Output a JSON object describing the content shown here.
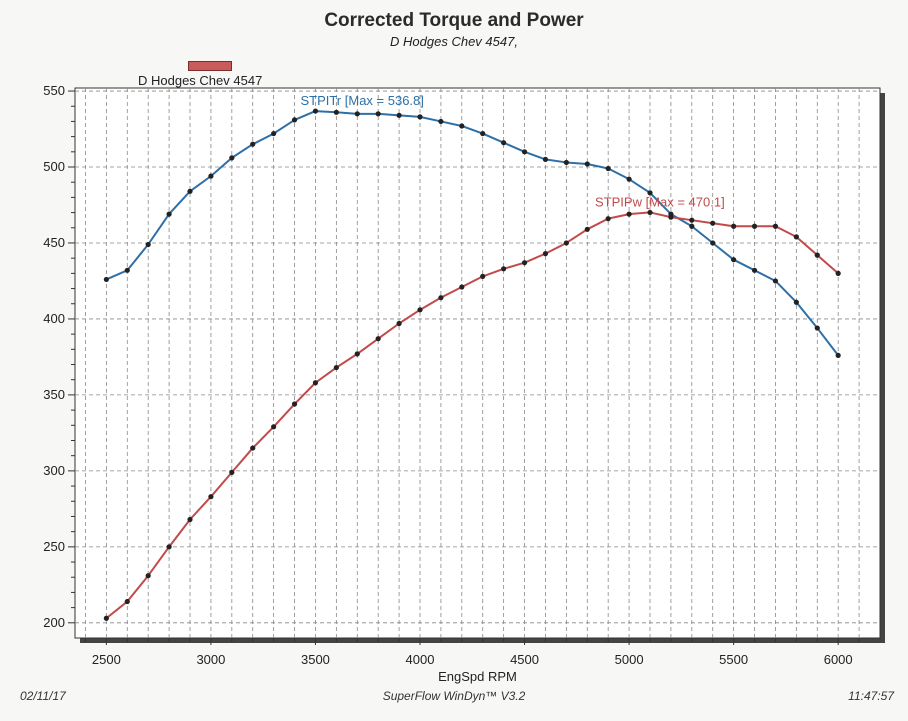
{
  "chart_data": {
    "type": "line",
    "title": "Corrected Torque and Power",
    "subtitle": "D Hodges Chev 4547,",
    "legend": {
      "label": "D Hodges Chev 4547",
      "placement": "top-left",
      "color": "#c95b5b"
    },
    "xlabel": "EngSpd RPM",
    "ylabel": "",
    "xlim": [
      2350,
      6200
    ],
    "ylim": [
      190,
      552
    ],
    "x_ticks": [
      2500,
      3000,
      3500,
      4000,
      4500,
      5000,
      5500,
      6000
    ],
    "y_ticks": [
      200,
      250,
      300,
      350,
      400,
      450,
      500,
      550
    ],
    "grid": true,
    "x": [
      2500,
      2600,
      2700,
      2800,
      2900,
      3000,
      3100,
      3200,
      3300,
      3400,
      3500,
      3600,
      3700,
      3800,
      3900,
      4000,
      4100,
      4200,
      4300,
      4400,
      4500,
      4600,
      4700,
      4800,
      4900,
      5000,
      5100,
      5200,
      5300,
      5400,
      5500,
      5600,
      5700,
      5800,
      5900,
      6000
    ],
    "series": [
      {
        "name": "STPITr",
        "color": "#2e6fa8",
        "annotation": "STPITr [Max = 536.8]",
        "values": [
          426,
          432,
          449,
          469,
          484,
          494,
          506,
          515,
          522,
          531,
          536.8,
          536,
          535,
          535,
          534,
          533,
          530,
          527,
          522,
          516,
          510,
          505,
          503,
          502,
          499,
          492,
          483,
          469,
          461,
          450,
          439,
          432,
          425,
          411,
          394,
          376
        ]
      },
      {
        "name": "STPIPw",
        "color": "#c24a4a",
        "annotation": "STPIPw [Max = 470.1]",
        "values": [
          203,
          214,
          231,
          250,
          268,
          283,
          299,
          315,
          329,
          344,
          358,
          368,
          377,
          387,
          397,
          406,
          414,
          421,
          428,
          433,
          437,
          443,
          450,
          459,
          466,
          469,
          470.1,
          467,
          465,
          463,
          461,
          461,
          461,
          454,
          442,
          430
        ]
      }
    ]
  },
  "footer": {
    "date": "02/11/17",
    "software": "SuperFlow WinDyn™ V3.2",
    "time": "11:47:57"
  }
}
